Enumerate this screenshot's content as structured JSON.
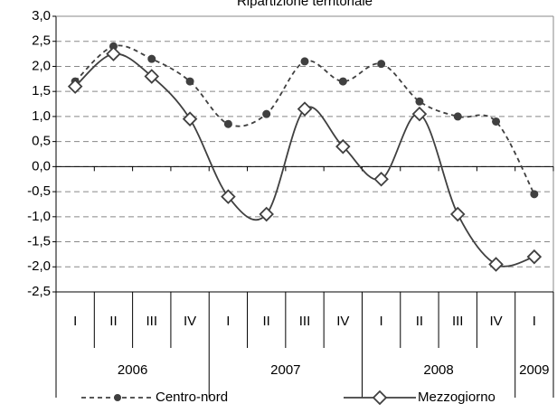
{
  "chart_data": {
    "type": "line",
    "title": "Ripartizione territoriale",
    "category_groups": [
      {
        "label": "2006",
        "categories": [
          "I",
          "II",
          "III",
          "IV"
        ]
      },
      {
        "label": "2007",
        "categories": [
          "I",
          "II",
          "III",
          "IV"
        ]
      },
      {
        "label": "2008",
        "categories": [
          "I",
          "II",
          "III",
          "IV"
        ]
      },
      {
        "label": "2009",
        "categories": [
          "I"
        ]
      }
    ],
    "series": [
      {
        "name": "Centro-nord",
        "color": "#404040",
        "dashed": true,
        "marker": "circle",
        "values": [
          1.7,
          2.4,
          2.15,
          1.7,
          0.85,
          1.05,
          2.1,
          1.7,
          2.05,
          1.3,
          1.0,
          0.9,
          -0.55
        ]
      },
      {
        "name": "Mezzogiorno",
        "color": "#404040",
        "dashed": false,
        "marker": "diamond",
        "values": [
          1.6,
          2.25,
          1.8,
          0.95,
          -0.6,
          -0.95,
          1.15,
          0.4,
          -0.25,
          1.05,
          -0.95,
          -1.95,
          -1.8
        ]
      }
    ],
    "ylim": [
      -2.5,
      3.0
    ],
    "yticks": [
      {
        "value": -2.5,
        "label": "-2,5"
      },
      {
        "value": -2.0,
        "label": "-2,0"
      },
      {
        "value": -1.5,
        "label": "-1,5"
      },
      {
        "value": -1.0,
        "label": "-1,0"
      },
      {
        "value": -0.5,
        "label": "-0,5"
      },
      {
        "value": 0,
        "label": "0,0"
      },
      {
        "value": 0.5,
        "label": "0,5"
      },
      {
        "value": 1.0,
        "label": "1,0"
      },
      {
        "value": 1.5,
        "label": "1,5"
      },
      {
        "value": 2.0,
        "label": "2,0"
      },
      {
        "value": 2.5,
        "label": "2,5"
      },
      {
        "value": 3.0,
        "label": "3,0"
      }
    ],
    "grid": true,
    "smooth": true,
    "legend": "bottom"
  }
}
